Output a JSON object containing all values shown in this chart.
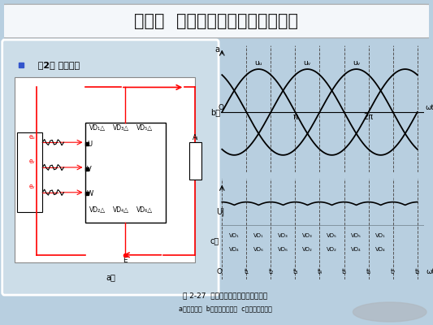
{
  "title": "第三节  交流发电机工作原理及特性",
  "subtitle": "  （2） 整流过程",
  "bg_color": "#b8cfe0",
  "title_bg": "#b8cfe0",
  "panel_bg": "#ccdde8",
  "circuit_bg": "#dde8f0",
  "wave_bg": "#e8eef4",
  "fig_caption": "图 2-27  三相桥式整流电路及电压波形",
  "fig_subcaption": "a）整流电路  b）绕组电压波形  c）整流电压波形",
  "b_label": "b）",
  "c_label": "c）",
  "a_label": "a）",
  "vd_top": [
    "VD₁",
    "VD₁",
    "VD₃",
    "VD₃",
    "VD₅",
    "VD₅",
    "VD₁"
  ],
  "vd_bot": [
    "VD₄",
    "VD₆",
    "VD₆",
    "VD₂",
    "VD₂",
    "VD₄",
    "VD₄"
  ],
  "t_labels": [
    "t₁",
    "t₂",
    "t₃",
    "t₄",
    "t₅",
    "t₆",
    "t₇",
    "t₈"
  ]
}
